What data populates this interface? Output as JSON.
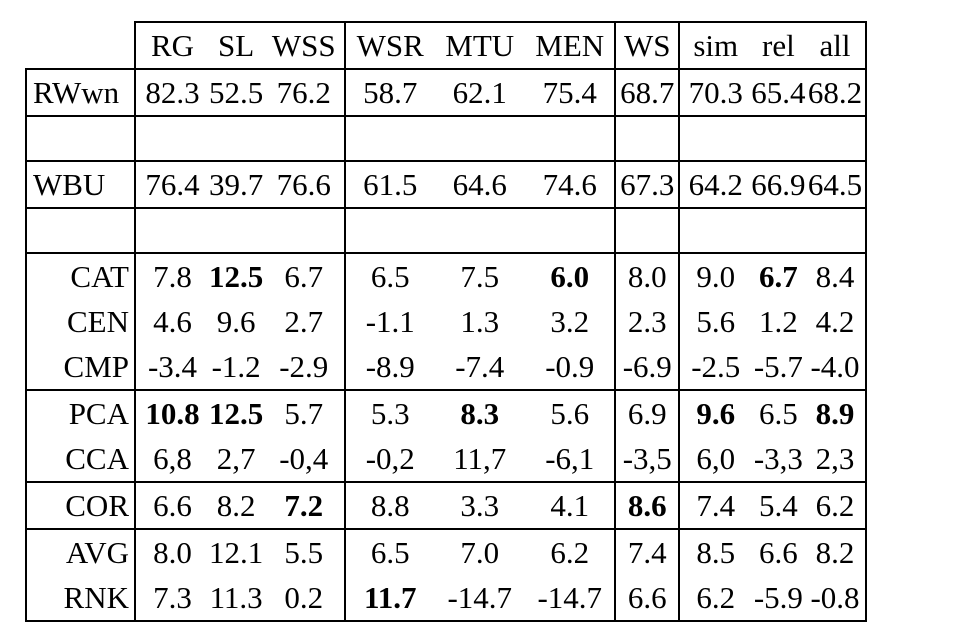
{
  "table": {
    "columns": [
      "RG",
      "SL",
      "WSS",
      "WSR",
      "MTU",
      "MEN",
      "WS",
      "sim",
      "rel",
      "all"
    ],
    "rows": [
      {
        "label": "RWwn",
        "values": [
          "82.3",
          "52.5",
          "76.2",
          "58.7",
          "62.1",
          "75.4",
          "68.7",
          "70.3",
          "65.4",
          "68.2"
        ],
        "bold": []
      },
      {
        "label": "WBU",
        "values": [
          "76.4",
          "39.7",
          "76.6",
          "61.5",
          "64.6",
          "74.6",
          "67.3",
          "64.2",
          "66.9",
          "64.5"
        ],
        "bold": []
      },
      {
        "label": "CAT",
        "values": [
          "7.8",
          "12.5",
          "6.7",
          "6.5",
          "7.5",
          "6.0",
          "8.0",
          "9.0",
          "6.7",
          "8.4"
        ],
        "bold": [
          1,
          5,
          8
        ]
      },
      {
        "label": "CEN",
        "values": [
          "4.6",
          "9.6",
          "2.7",
          "-1.1",
          "1.3",
          "3.2",
          "2.3",
          "5.6",
          "1.2",
          "4.2"
        ],
        "bold": []
      },
      {
        "label": "CMP",
        "values": [
          "-3.4",
          "-1.2",
          "-2.9",
          "-8.9",
          "-7.4",
          "-0.9",
          "-6.9",
          "-2.5",
          "-5.7",
          "-4.0"
        ],
        "bold": []
      },
      {
        "label": "PCA",
        "values": [
          "10.8",
          "12.5",
          "5.7",
          "5.3",
          "8.3",
          "5.6",
          "6.9",
          "9.6",
          "6.5",
          "8.9"
        ],
        "bold": [
          0,
          1,
          4,
          7,
          9
        ]
      },
      {
        "label": "CCA",
        "values": [
          "6,8",
          "2,7",
          "-0,4",
          "-0,2",
          "11,7",
          "-6,1",
          "-3,5",
          "6,0",
          "-3,3",
          "2,3"
        ],
        "bold": []
      },
      {
        "label": "COR",
        "values": [
          "6.6",
          "8.2",
          "7.2",
          "8.8",
          "3.3",
          "4.1",
          "8.6",
          "7.4",
          "5.4",
          "6.2"
        ],
        "bold": [
          2,
          6
        ]
      },
      {
        "label": "AVG",
        "values": [
          "8.0",
          "12.1",
          "5.5",
          "6.5",
          "7.0",
          "6.2",
          "7.4",
          "8.5",
          "6.6",
          "8.2"
        ],
        "bold": []
      },
      {
        "label": "RNK",
        "values": [
          "7.3",
          "11.3",
          "0.2",
          "11.7",
          "-14.7",
          "-14.7",
          "6.6",
          "6.2",
          "-5.9",
          "-0.8"
        ],
        "bold": [
          3
        ]
      }
    ]
  }
}
